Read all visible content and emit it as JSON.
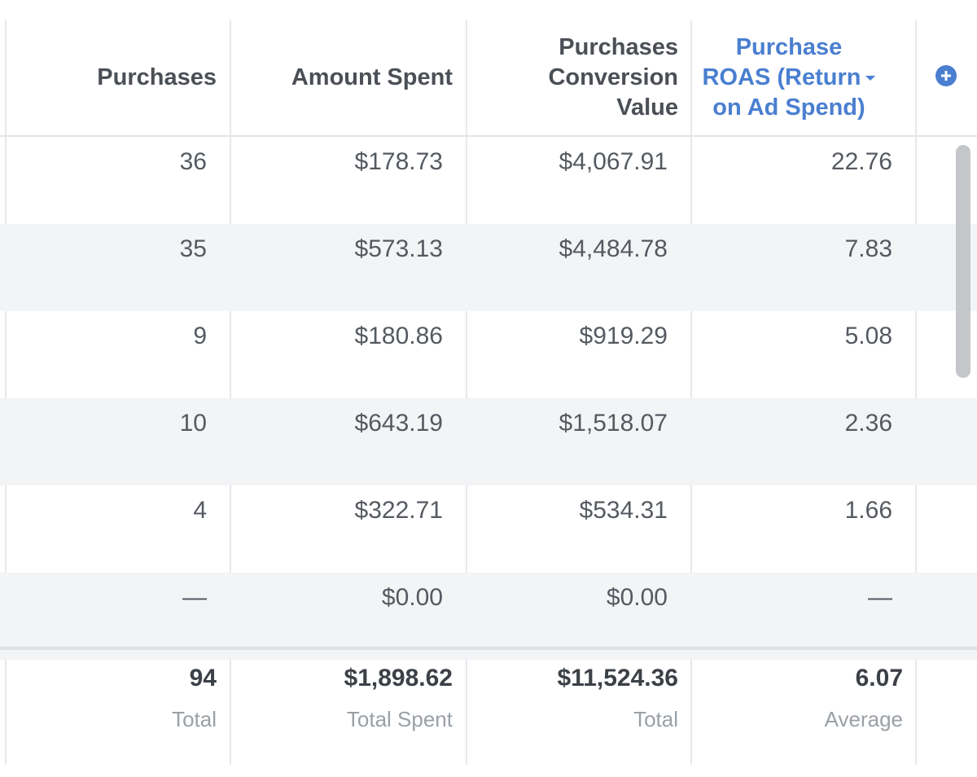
{
  "header": {
    "col_purchases": "Purchases",
    "col_amount_spent": "Amount Spent",
    "col_conversion_value": [
      "Purchases",
      "Conversion",
      "Value"
    ],
    "col_roas": [
      "Purchase",
      "ROAS (Return",
      "on Ad Spend)"
    ],
    "add_column_icon": "plus-circle-icon",
    "sort_icon": "caret-down-icon"
  },
  "rows": [
    {
      "purchases": "36",
      "amount_spent": "$178.73",
      "conversion_value": "$4,067.91",
      "roas": "22.76"
    },
    {
      "purchases": "35",
      "amount_spent": "$573.13",
      "conversion_value": "$4,484.78",
      "roas": "7.83"
    },
    {
      "purchases": "9",
      "amount_spent": "$180.86",
      "conversion_value": "$919.29",
      "roas": "5.08"
    },
    {
      "purchases": "10",
      "amount_spent": "$643.19",
      "conversion_value": "$1,518.07",
      "roas": "2.36"
    },
    {
      "purchases": "4",
      "amount_spent": "$322.71",
      "conversion_value": "$534.31",
      "roas": "1.66"
    },
    {
      "purchases": "—",
      "amount_spent": "$0.00",
      "conversion_value": "$0.00",
      "roas": "—"
    }
  ],
  "totals": {
    "purchases": {
      "value": "94",
      "label": "Total"
    },
    "amount_spent": {
      "value": "$1,898.62",
      "label": "Total Spent"
    },
    "conversion_value": {
      "value": "$11,524.36",
      "label": "Total"
    },
    "roas": {
      "value": "6.07",
      "label": "Average"
    }
  },
  "colors": {
    "accent": "#4a7fd0",
    "text": "#555a61",
    "row_alt": "#f3f4f6"
  }
}
